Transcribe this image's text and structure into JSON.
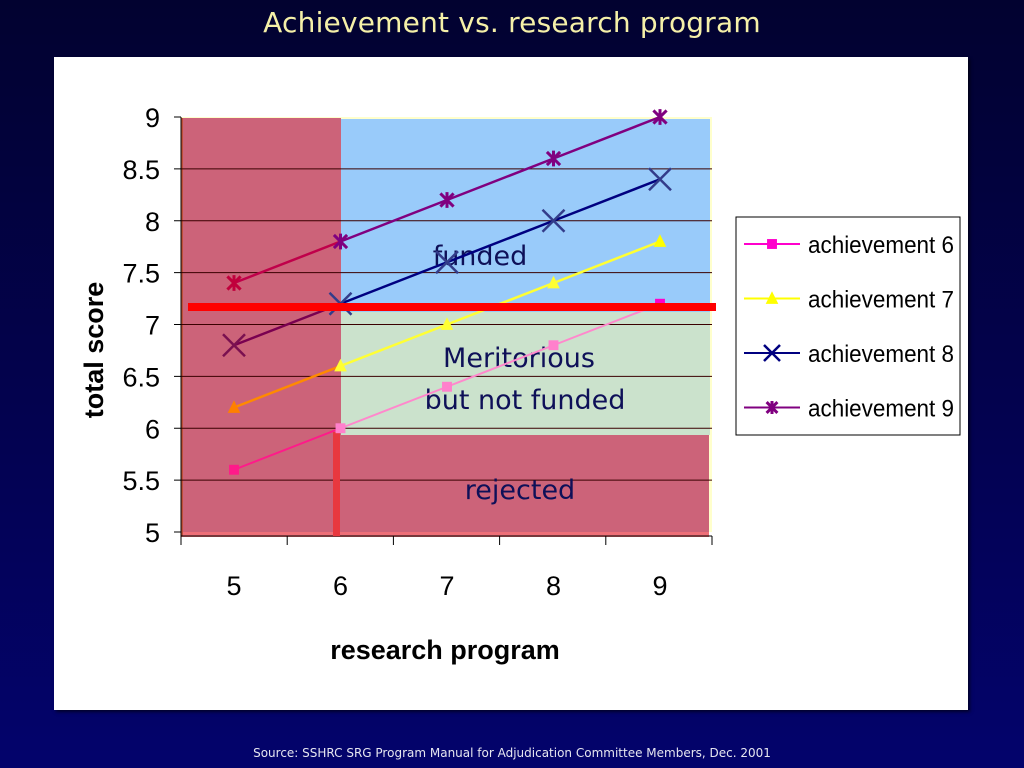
{
  "slide": {
    "title": "Achievement vs. research program",
    "source": "Source: SSHRC  SRG Program Manual for Adjudication Committee Members, Dec. 2001"
  },
  "colors": {
    "background_top": "#020230",
    "background_bottom": "#03036c",
    "title": "#f5f0a8",
    "rejected_region": "#cc6379",
    "funded_region": "#99cbfa",
    "meritorious_region": "#cbe2cc",
    "threshold_line": "#ff0000",
    "region_text": "#0e1058"
  },
  "chart_data": {
    "type": "line",
    "title": "Achievement vs. research program",
    "xlabel": "research program",
    "ylabel": "total score",
    "x": [
      5,
      6,
      7,
      8,
      9
    ],
    "x_tick_labels": [
      "5",
      "6",
      "7",
      "8",
      "9"
    ],
    "y_tick_labels": [
      "9",
      "8.5",
      "8",
      "7.5",
      "7",
      "6.5",
      "6",
      "5.5",
      "5"
    ],
    "ylim": [
      5,
      9
    ],
    "grid": "horizontal major gridlines",
    "legend_position": "right",
    "series": [
      {
        "name": "achievement 6",
        "values": [
          5.6,
          6.0,
          6.4,
          6.8,
          7.2
        ],
        "color": "#ff00cc",
        "marker": "square"
      },
      {
        "name": "achievement 7",
        "values": [
          6.2,
          6.6,
          7.0,
          7.4,
          7.8
        ],
        "color": "#ffff00",
        "marker": "triangle"
      },
      {
        "name": "achievement 8",
        "values": [
          6.8,
          7.2,
          7.6,
          8.0,
          8.4
        ],
        "color": "#000080",
        "marker": "x"
      },
      {
        "name": "achievement 9",
        "values": [
          7.4,
          7.8,
          8.2,
          8.6,
          9.0
        ],
        "color": "#800080",
        "marker": "star"
      }
    ],
    "annotations": {
      "regions": [
        {
          "label": "funded",
          "description": "research program >= 6 and total score above cutoff"
        },
        {
          "label": "Meritorious but not funded",
          "line1": "Meritorious",
          "line2": "but not funded",
          "description": "research program >= 6, score between 6 and cutoff"
        },
        {
          "label": "rejected",
          "description": "research program < 6 or total score < 6"
        }
      ],
      "funding_cutoff_score": 7.17,
      "research_program_minimum": 6
    }
  }
}
